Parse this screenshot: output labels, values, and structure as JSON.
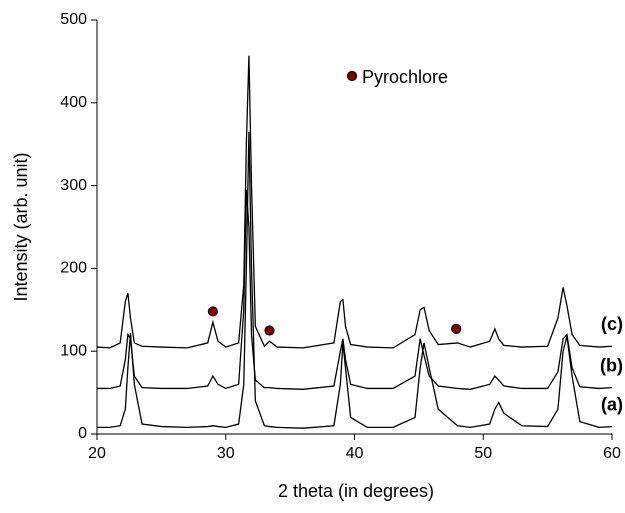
{
  "chart_data": {
    "type": "line",
    "xlabel": "2 theta (in degrees)",
    "ylabel": "Intensity (arb. unit)",
    "x": [
      20,
      21,
      21.8,
      22.2,
      22.4,
      22.6,
      22.9,
      23.5,
      25,
      27,
      28.6,
      29,
      29.4,
      30,
      31,
      31.4,
      31.6,
      31.8,
      32.0,
      32.3,
      33,
      33.4,
      34,
      36,
      38.4,
      38.9,
      39.1,
      39.3,
      39.7,
      41,
      43,
      44.7,
      45.1,
      45.4,
      45.8,
      46.5,
      48,
      49,
      50.5,
      50.9,
      51.2,
      51.6,
      53,
      55,
      55.8,
      56.2,
      56.5,
      56.9,
      57.5,
      59,
      60
    ],
    "series": [
      {
        "name": "(a)",
        "color": "#000000",
        "values": [
          8,
          8,
          10,
          30,
          80,
          122,
          60,
          12,
          9,
          8,
          9,
          10,
          9,
          8,
          12,
          60,
          200,
          365,
          200,
          40,
          10,
          9,
          8,
          7,
          10,
          60,
          110,
          80,
          20,
          8,
          8,
          20,
          80,
          110,
          80,
          30,
          10,
          8,
          12,
          30,
          38,
          25,
          10,
          9,
          30,
          100,
          118,
          70,
          15,
          8,
          9
        ]
      },
      {
        "name": "(b)",
        "color": "#000000",
        "values": [
          55,
          55,
          58,
          90,
          120,
          115,
          70,
          56,
          55,
          55,
          58,
          70,
          60,
          55,
          60,
          150,
          295,
          250,
          120,
          65,
          56,
          56,
          55,
          54,
          58,
          100,
          115,
          90,
          60,
          55,
          55,
          70,
          115,
          95,
          70,
          58,
          55,
          54,
          60,
          70,
          65,
          58,
          55,
          55,
          75,
          115,
          120,
          80,
          57,
          55,
          56
        ]
      },
      {
        "name": "(c)",
        "color": "#000000",
        "values": [
          105,
          104,
          110,
          160,
          170,
          140,
          110,
          106,
          105,
          104,
          110,
          135,
          112,
          105,
          110,
          180,
          350,
          457,
          300,
          130,
          106,
          112,
          105,
          104,
          110,
          160,
          162,
          130,
          108,
          105,
          104,
          120,
          150,
          153,
          125,
          108,
          110,
          105,
          112,
          127,
          115,
          107,
          105,
          106,
          140,
          177,
          155,
          120,
          107,
          105,
          106
        ]
      }
    ],
    "markers": {
      "name": "Pyrochlore",
      "color": "#8b0000",
      "x": [
        29,
        33.4,
        47.9
      ],
      "values": [
        148,
        125,
        127
      ]
    },
    "xlim": [
      20,
      60
    ],
    "xticks": [
      20,
      30,
      40,
      50,
      60
    ],
    "ylim": [
      0,
      500
    ],
    "yticks": [
      0,
      100,
      200,
      300,
      400,
      500
    ]
  }
}
